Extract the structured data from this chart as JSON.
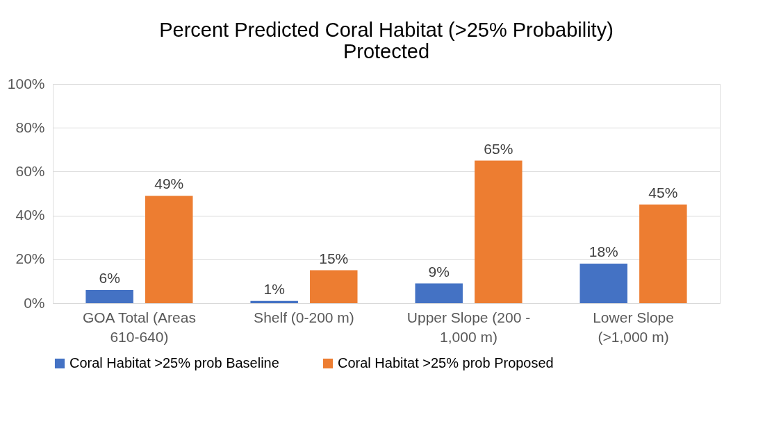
{
  "chart_data": {
    "type": "bar",
    "title": "Percent Predicted Coral Habitat (>25% Probability) Protected",
    "categories": [
      "GOA Total (Areas 610-640)",
      "Shelf (0-200 m)",
      "Upper Slope (200 - 1,000 m)",
      "Lower Slope (>1,000 m)"
    ],
    "series": [
      {
        "name": "Coral Habitat >25% prob Baseline",
        "color": "#4472c4",
        "values": [
          6,
          1,
          9,
          18
        ],
        "value_labels": [
          "6%",
          "1%",
          "9%",
          "18%"
        ]
      },
      {
        "name": "Coral Habitat >25% prob Proposed",
        "color": "#ed7d31",
        "values": [
          49,
          15,
          65,
          45
        ],
        "value_labels": [
          "49%",
          "15%",
          "65%",
          "45%"
        ]
      }
    ],
    "ylim": [
      0,
      100
    ],
    "yticks": [
      {
        "value": 0,
        "label": "0%"
      },
      {
        "value": 20,
        "label": "20%"
      },
      {
        "value": 40,
        "label": "40%"
      },
      {
        "value": 60,
        "label": "60%"
      },
      {
        "value": 80,
        "label": "80%"
      },
      {
        "value": 100,
        "label": "100%"
      }
    ],
    "grid": "y",
    "legend": "bottom"
  }
}
